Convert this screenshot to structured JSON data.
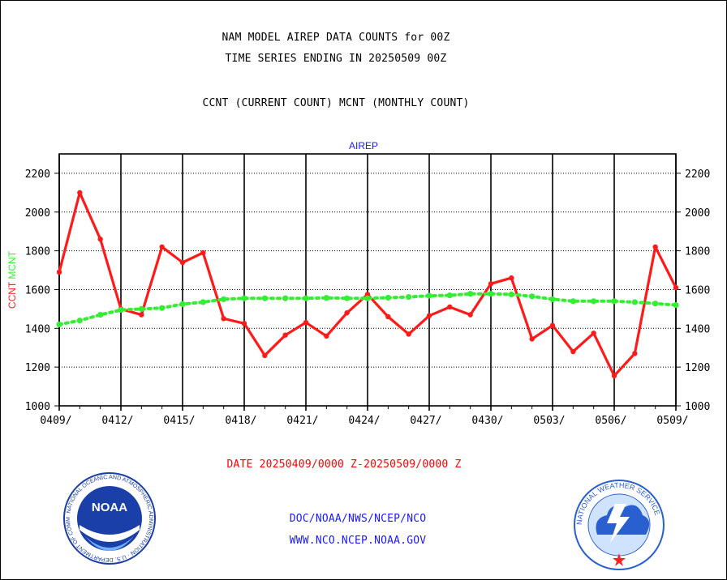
{
  "header": {
    "title": "NAM MODEL AIREP DATA COUNTS for 00Z",
    "subtitle": "TIME SERIES ENDING IN 20250509 00Z",
    "legend_text": "CCNT (CURRENT COUNT) MCNT (MONTHLY COUNT)"
  },
  "footer": {
    "date_range": "DATE 20250409/0000 Z-20250509/0000 Z",
    "credit_line1": "DOC/NOAA/NWS/NCEP/NCO",
    "credit_line2": "WWW.NCO.NCEP.NOAA.GOV"
  },
  "logos": {
    "noaa": {
      "center_text": "NOAA",
      "ring_text": "NATIONAL OCEANIC AND ATMOSPHERIC ADMINISTRATION · U.S. DEPARTMENT OF COMMERCE",
      "color": "#1a3fa8"
    },
    "nws": {
      "ring_text": "NATIONAL WEATHER SERVICE",
      "color": "#2a5fd0"
    }
  },
  "colors": {
    "ccnt": "#ff1a1a",
    "mcnt": "#33ee33",
    "panel_title": "#1a1aff"
  },
  "chart_data": {
    "type": "line",
    "title": "AIREP",
    "ylabel_parts": [
      {
        "text": "CCNT",
        "color": "#ff1a1a"
      },
      {
        "text": "MCNT",
        "color": "#33ee33"
      }
    ],
    "ylim": [
      1000,
      2300
    ],
    "yticks": [
      1000,
      1200,
      1400,
      1600,
      1800,
      2000,
      2200
    ],
    "xlim": [
      0,
      30
    ],
    "xticks": [
      {
        "i": 0,
        "label": "0409/"
      },
      {
        "i": 3,
        "label": "0412/"
      },
      {
        "i": 6,
        "label": "0415/"
      },
      {
        "i": 9,
        "label": "0418/"
      },
      {
        "i": 12,
        "label": "0421/"
      },
      {
        "i": 15,
        "label": "0424/"
      },
      {
        "i": 18,
        "label": "0427/"
      },
      {
        "i": 21,
        "label": "0430/"
      },
      {
        "i": 24,
        "label": "0503/"
      },
      {
        "i": 27,
        "label": "0506/"
      },
      {
        "i": 30,
        "label": "0509/"
      }
    ],
    "grid": true,
    "series": [
      {
        "name": "CCNT",
        "color": "#ff1a1a",
        "values": [
          1690,
          2100,
          1860,
          1500,
          1470,
          1820,
          1740,
          1790,
          1450,
          1425,
          1260,
          1365,
          1430,
          1360,
          1480,
          1575,
          1460,
          1370,
          1465,
          1510,
          1470,
          1630,
          1660,
          1345,
          1415,
          1280,
          1375,
          1155,
          1270,
          1820,
          1610
        ]
      },
      {
        "name": "MCNT",
        "color": "#33ee33",
        "values": [
          1420,
          1440,
          1470,
          1495,
          1500,
          1505,
          1525,
          1535,
          1550,
          1555,
          1555,
          1555,
          1555,
          1557,
          1555,
          1555,
          1558,
          1562,
          1568,
          1570,
          1578,
          1578,
          1575,
          1565,
          1550,
          1540,
          1540,
          1540,
          1535,
          1528,
          1520
        ]
      }
    ]
  }
}
